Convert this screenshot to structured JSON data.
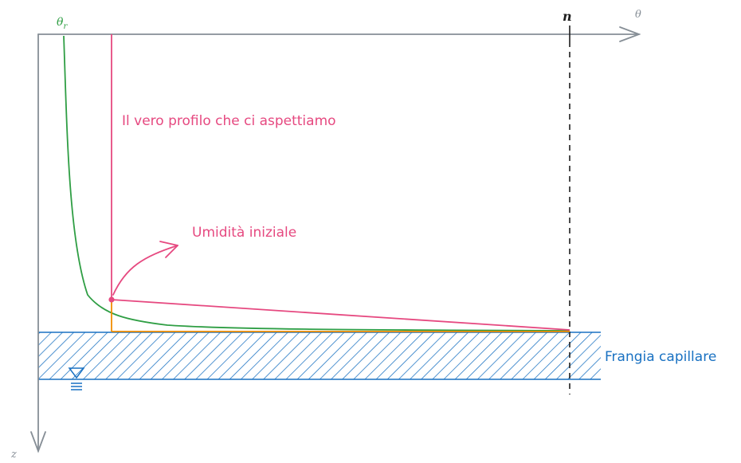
{
  "axes": {
    "horizontal_label": "θ",
    "vertical_label": "z"
  },
  "labels": {
    "theta_r": "θr",
    "porosity": "n",
    "true_profile": "Il vero profilo che ci aspettiamo",
    "initial_moisture": "Umidità iniziale",
    "capillary_fringe": "Frangia capillare"
  },
  "colors": {
    "axis": "#868e96",
    "green_curve": "#2f9e44",
    "pink_profile": "#e64980",
    "orange_line": "#f08c00",
    "hatch_blue": "#1971c2",
    "dashed_line": "#1e1e1e"
  },
  "icons": {
    "water_table": "water-table-symbol"
  }
}
